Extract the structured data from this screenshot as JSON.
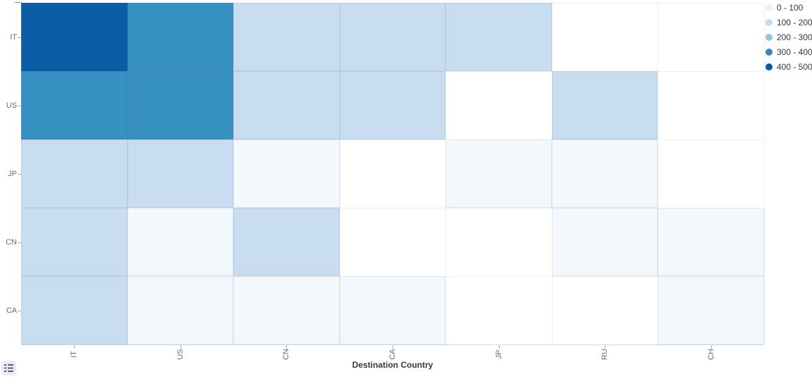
{
  "chart_data": {
    "type": "heatmap",
    "title": "",
    "xlabel": "Destination Country",
    "ylabel": "",
    "x_categories": [
      "IT",
      "US",
      "CN",
      "CA",
      "JP",
      "RU",
      "CH"
    ],
    "y_categories": [
      "IT",
      "US",
      "JP",
      "CN",
      "CA"
    ],
    "legend_position": "top-right",
    "grid": true,
    "buckets": [
      {
        "label": "0 - 100",
        "cell_color": "#F3F8FD",
        "dot_color": "#E9F2FA"
      },
      {
        "label": "100 - 200",
        "cell_color": "#C9DDF1",
        "dot_color": "#C6DBEF"
      },
      {
        "label": "200 - 300",
        "cell_color": "#9AC7E2",
        "dot_color": "#94C4DF"
      },
      {
        "label": "300 - 400",
        "cell_color": "#3690C2",
        "dot_color": "#3787C0"
      },
      {
        "label": "400 - 500",
        "cell_color": "#0B5EA6",
        "dot_color": "#0A59A3"
      }
    ],
    "cells": [
      [
        4,
        3,
        1,
        1,
        1,
        null,
        null
      ],
      [
        3,
        3,
        1,
        1,
        null,
        1,
        null
      ],
      [
        1,
        1,
        0,
        null,
        0,
        0,
        null
      ],
      [
        1,
        0,
        1,
        null,
        null,
        0,
        0
      ],
      [
        1,
        0,
        0,
        0,
        null,
        null,
        0
      ]
    ]
  },
  "controls": {
    "legend_toggle_icon": "list-icon"
  }
}
